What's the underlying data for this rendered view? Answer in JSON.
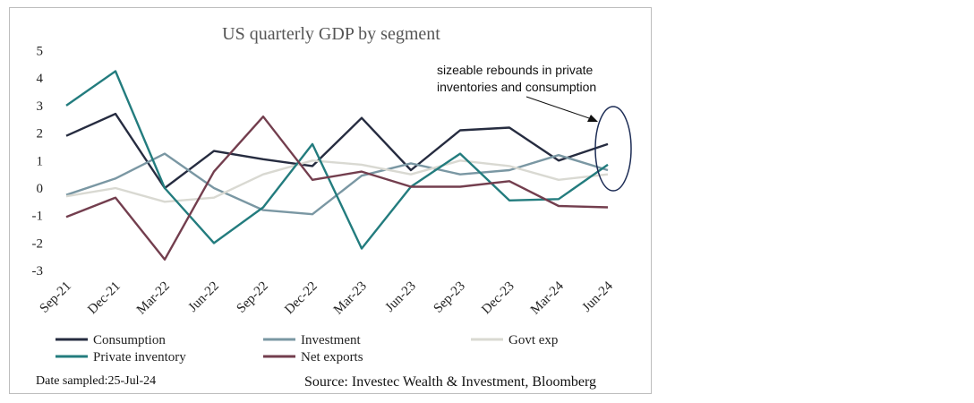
{
  "chart_data": {
    "type": "line",
    "title": "US quarterly GDP by segment",
    "categories": [
      "Sep-21",
      "Dec-21",
      "Mar-22",
      "Jun-22",
      "Sep-22",
      "Dec-22",
      "Mar-23",
      "Jun-23",
      "Sep-23",
      "Dec-23",
      "Mar-24",
      "Jun-24"
    ],
    "ylim": [
      -3,
      5
    ],
    "yticks": [
      5,
      4,
      3,
      2,
      1,
      0,
      -1,
      -2,
      -3
    ],
    "ytick_labels": [
      "5",
      "4",
      "3",
      "2",
      "1",
      "0",
      "-1",
      "-2",
      "-3"
    ],
    "grid": false,
    "legend_position": "bottom",
    "series": [
      {
        "name": "Consumption",
        "color": "#262c40",
        "values": [
          1.9,
          2.7,
          0.0,
          1.35,
          1.05,
          0.8,
          2.55,
          0.65,
          2.1,
          2.2,
          1.0,
          1.6
        ]
      },
      {
        "name": "Investment",
        "color": "#7a97a3",
        "values": [
          -0.25,
          0.35,
          1.25,
          0.0,
          -0.8,
          -0.95,
          0.45,
          0.9,
          0.5,
          0.65,
          1.2,
          0.65
        ]
      },
      {
        "name": "Govt exp",
        "color": "#d9d9d2",
        "values": [
          -0.3,
          0.0,
          -0.5,
          -0.35,
          0.5,
          1.0,
          0.85,
          0.5,
          1.0,
          0.8,
          0.3,
          0.5
        ]
      },
      {
        "name": "Private inventory",
        "color": "#237c7e",
        "values": [
          3.0,
          4.25,
          0.0,
          -2.0,
          -0.7,
          1.6,
          -2.2,
          0.05,
          1.25,
          -0.45,
          -0.4,
          0.85
        ]
      },
      {
        "name": "Net exports",
        "color": "#733e4e",
        "values": [
          -1.05,
          -0.35,
          -2.6,
          0.6,
          2.6,
          0.3,
          0.6,
          0.05,
          0.05,
          0.25,
          -0.65,
          -0.7
        ]
      }
    ],
    "annotation": {
      "text_line1": "sizeable rebounds in private",
      "text_line2": "inventories and consumption"
    }
  },
  "footer": {
    "date_sampled": "Date sampled:25-Jul-24",
    "source": "Source: Investec Wealth & Investment, Bloomberg"
  }
}
